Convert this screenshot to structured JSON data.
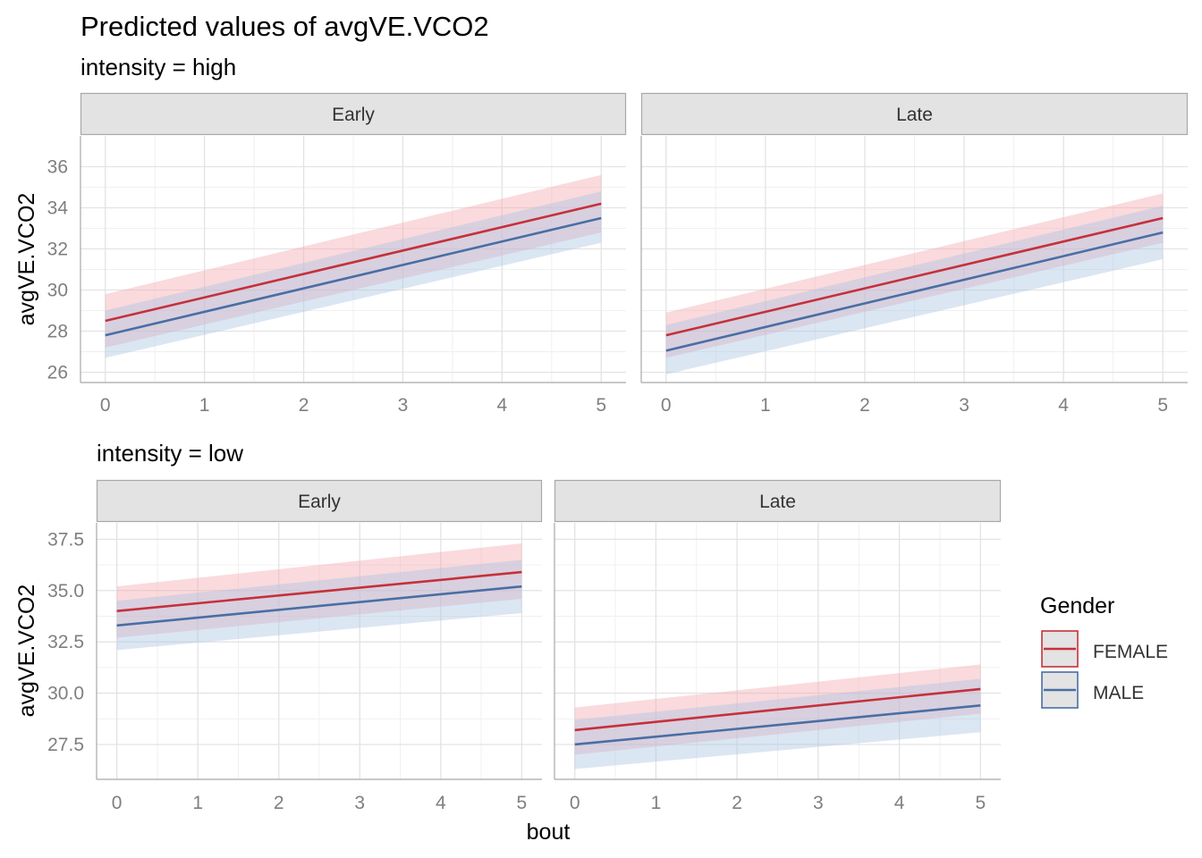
{
  "title": "Predicted values of avgVE.VCO2",
  "xlabel": "bout",
  "colors": {
    "FEMALE": "#c6303b",
    "MALE": "#4a6ea4",
    "FEMALE_band": "#f4a8ae",
    "MALE_band": "#a9c4e2",
    "grid_major": "#e3e3e3",
    "grid_minor": "#f0f0f0",
    "strip_fill": "#e3e3e3",
    "strip_border": "#a8a8a8"
  },
  "legend": {
    "title": "Gender",
    "entries": [
      "FEMALE",
      "MALE"
    ]
  },
  "chart_data": [
    {
      "type": "line",
      "subtitle": "intensity = high",
      "ylabel": "avgVE.VCO2",
      "xlim": [
        -0.25,
        5.25
      ],
      "ylim": [
        25.5,
        37.5
      ],
      "xticks": [
        0,
        1,
        2,
        3,
        4,
        5
      ],
      "yticks": [
        26,
        28,
        30,
        32,
        34,
        36
      ],
      "ytick_labels": [
        "26",
        "28",
        "30",
        "32",
        "34",
        "36"
      ],
      "panels": [
        {
          "label": "Early",
          "series": [
            {
              "name": "FEMALE",
              "x": [
                0,
                5
              ],
              "y": [
                28.5,
                34.2
              ],
              "lower": [
                27.2,
                32.8
              ],
              "upper": [
                29.8,
                35.6
              ]
            },
            {
              "name": "MALE",
              "x": [
                0,
                5
              ],
              "y": [
                27.8,
                33.5
              ],
              "lower": [
                26.7,
                32.3
              ],
              "upper": [
                29.0,
                34.8
              ]
            }
          ]
        },
        {
          "label": "Late",
          "series": [
            {
              "name": "FEMALE",
              "x": [
                0,
                5
              ],
              "y": [
                27.8,
                33.5
              ],
              "lower": [
                26.7,
                32.3
              ],
              "upper": [
                28.9,
                34.7
              ]
            },
            {
              "name": "MALE",
              "x": [
                0,
                5
              ],
              "y": [
                27.05,
                32.8
              ],
              "lower": [
                25.9,
                31.5
              ],
              "upper": [
                28.3,
                34.1
              ]
            }
          ]
        }
      ]
    },
    {
      "type": "line",
      "subtitle": "intensity = low",
      "ylabel": "avgVE.VCO2",
      "xlim": [
        -0.25,
        5.25
      ],
      "ylim": [
        25.8,
        38.3
      ],
      "xticks": [
        0,
        1,
        2,
        3,
        4,
        5
      ],
      "yticks": [
        27.5,
        30.0,
        32.5,
        35.0,
        37.5
      ],
      "ytick_labels": [
        "27.5",
        "30.0",
        "32.5",
        "35.0",
        "37.5"
      ],
      "panels": [
        {
          "label": "Early",
          "series": [
            {
              "name": "FEMALE",
              "x": [
                0,
                5
              ],
              "y": [
                34.0,
                35.9
              ],
              "lower": [
                32.7,
                34.6
              ],
              "upper": [
                35.2,
                37.3
              ]
            },
            {
              "name": "MALE",
              "x": [
                0,
                5
              ],
              "y": [
                33.3,
                35.2
              ],
              "lower": [
                32.1,
                33.9
              ],
              "upper": [
                34.5,
                36.5
              ]
            }
          ]
        },
        {
          "label": "Late",
          "series": [
            {
              "name": "FEMALE",
              "x": [
                0,
                5
              ],
              "y": [
                28.2,
                30.2
              ],
              "lower": [
                27.0,
                29.0
              ],
              "upper": [
                29.3,
                31.4
              ]
            },
            {
              "name": "MALE",
              "x": [
                0,
                5
              ],
              "y": [
                27.5,
                29.4
              ],
              "lower": [
                26.3,
                28.1
              ],
              "upper": [
                28.7,
                30.7
              ]
            }
          ]
        }
      ]
    }
  ]
}
